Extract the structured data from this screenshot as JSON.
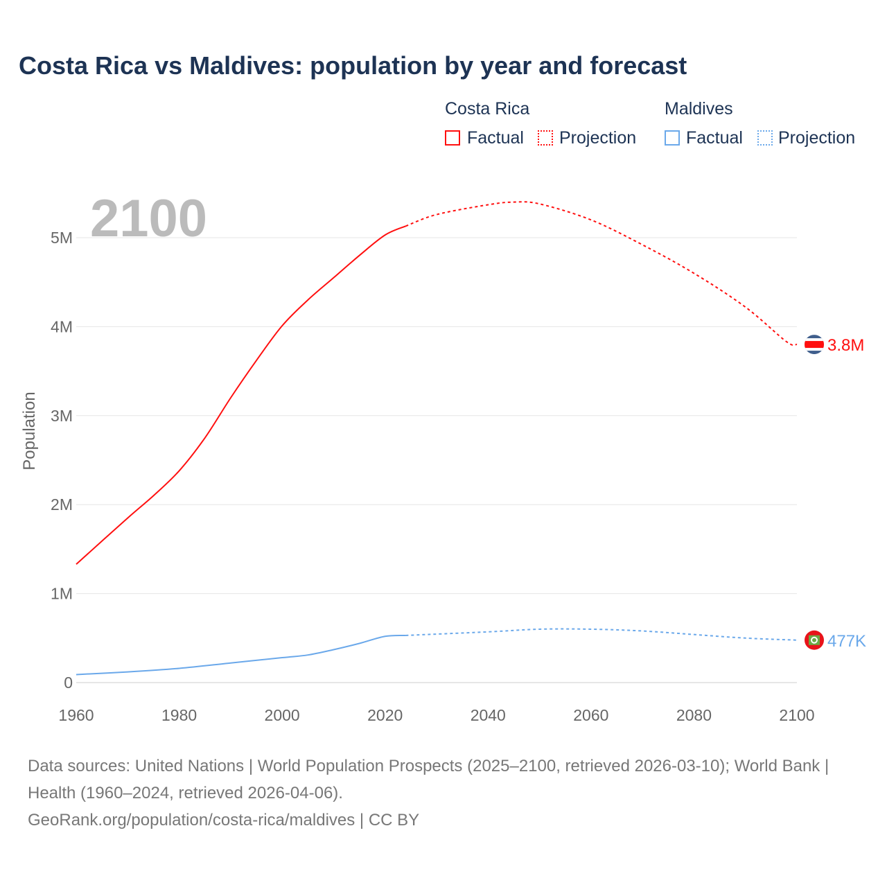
{
  "title": "Costa Rica vs Maldives: population by year and forecast",
  "legend": {
    "groups": [
      {
        "name": "Costa Rica",
        "factual": "Factual",
        "projection": "Projection",
        "color": "#ff0f0f"
      },
      {
        "name": "Maldives",
        "factual": "Factual",
        "projection": "Projection",
        "color": "#6aa8ea"
      }
    ]
  },
  "year_label": "2100",
  "footer": {
    "line1": "Data sources: United Nations | World Population Prospects (2025–2100, retrieved 2026-03-10); World Bank | Health (1960–2024, retrieved 2026-04-06).",
    "line2": "GeoRank.org/population/costa-rica/maldives | CC BY"
  },
  "chart_data": {
    "type": "line",
    "ylabel": "Population",
    "xlim": [
      1960,
      2100
    ],
    "ylim": [
      0,
      5000000
    ],
    "xticks": [
      "1960",
      "1980",
      "2000",
      "2020",
      "2040",
      "2060",
      "2080",
      "2100"
    ],
    "yticks": [
      {
        "v": 0,
        "label": "0"
      },
      {
        "v": 1000000,
        "label": "1M"
      },
      {
        "v": 2000000,
        "label": "2M"
      },
      {
        "v": 3000000,
        "label": "3M"
      },
      {
        "v": 4000000,
        "label": "4M"
      },
      {
        "v": 5000000,
        "label": "5M"
      }
    ],
    "series": [
      {
        "name": "Costa Rica",
        "color": "#ff0f0f",
        "end_label": "3.8M",
        "factual": [
          [
            1960,
            1.33
          ],
          [
            1970,
            1.85
          ],
          [
            1975,
            2.1
          ],
          [
            1980,
            2.38
          ],
          [
            1985,
            2.75
          ],
          [
            1990,
            3.2
          ],
          [
            1995,
            3.62
          ],
          [
            2000,
            4.01
          ],
          [
            2005,
            4.3
          ],
          [
            2010,
            4.55
          ],
          [
            2015,
            4.8
          ],
          [
            2020,
            5.03
          ],
          [
            2024,
            5.13
          ]
        ],
        "projection": [
          [
            2024,
            5.13
          ],
          [
            2030,
            5.26
          ],
          [
            2040,
            5.37
          ],
          [
            2045,
            5.4
          ],
          [
            2050,
            5.38
          ],
          [
            2060,
            5.2
          ],
          [
            2070,
            4.92
          ],
          [
            2080,
            4.6
          ],
          [
            2090,
            4.22
          ],
          [
            2098,
            3.83
          ],
          [
            2100,
            3.8
          ]
        ]
      },
      {
        "name": "Maldives",
        "color": "#6aa8ea",
        "end_label": "477K",
        "factual": [
          [
            1960,
            0.09
          ],
          [
            1970,
            0.12
          ],
          [
            1980,
            0.16
          ],
          [
            1990,
            0.22
          ],
          [
            2000,
            0.28
          ],
          [
            2005,
            0.31
          ],
          [
            2010,
            0.37
          ],
          [
            2015,
            0.44
          ],
          [
            2020,
            0.52
          ],
          [
            2024,
            0.53
          ]
        ],
        "projection": [
          [
            2024,
            0.53
          ],
          [
            2040,
            0.57
          ],
          [
            2050,
            0.6
          ],
          [
            2060,
            0.6
          ],
          [
            2070,
            0.58
          ],
          [
            2080,
            0.54
          ],
          [
            2090,
            0.5
          ],
          [
            2100,
            0.477
          ]
        ]
      }
    ]
  }
}
